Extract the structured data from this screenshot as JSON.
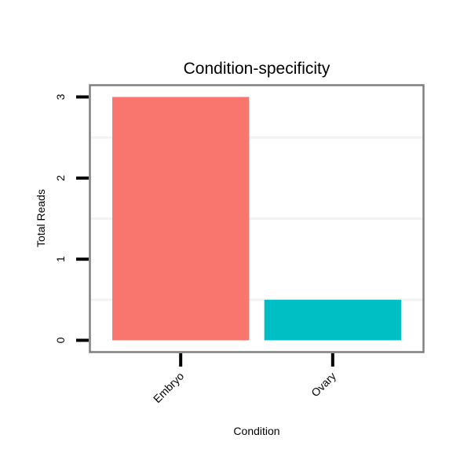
{
  "chart_data": {
    "type": "bar",
    "title": "Condition-specificity",
    "xlabel": "Condition",
    "ylabel": "Total Reads",
    "categories": [
      "Embryo",
      "Ovary"
    ],
    "values": [
      3,
      0.5
    ],
    "colors": [
      "#F8766D",
      "#00BFC4"
    ],
    "ylim": [
      -0.15,
      3.15
    ],
    "yticks": [
      0,
      1,
      2,
      3
    ],
    "minor_gridlines": [
      0.5,
      1.5,
      2.5
    ],
    "grid": true,
    "legend": "none"
  }
}
